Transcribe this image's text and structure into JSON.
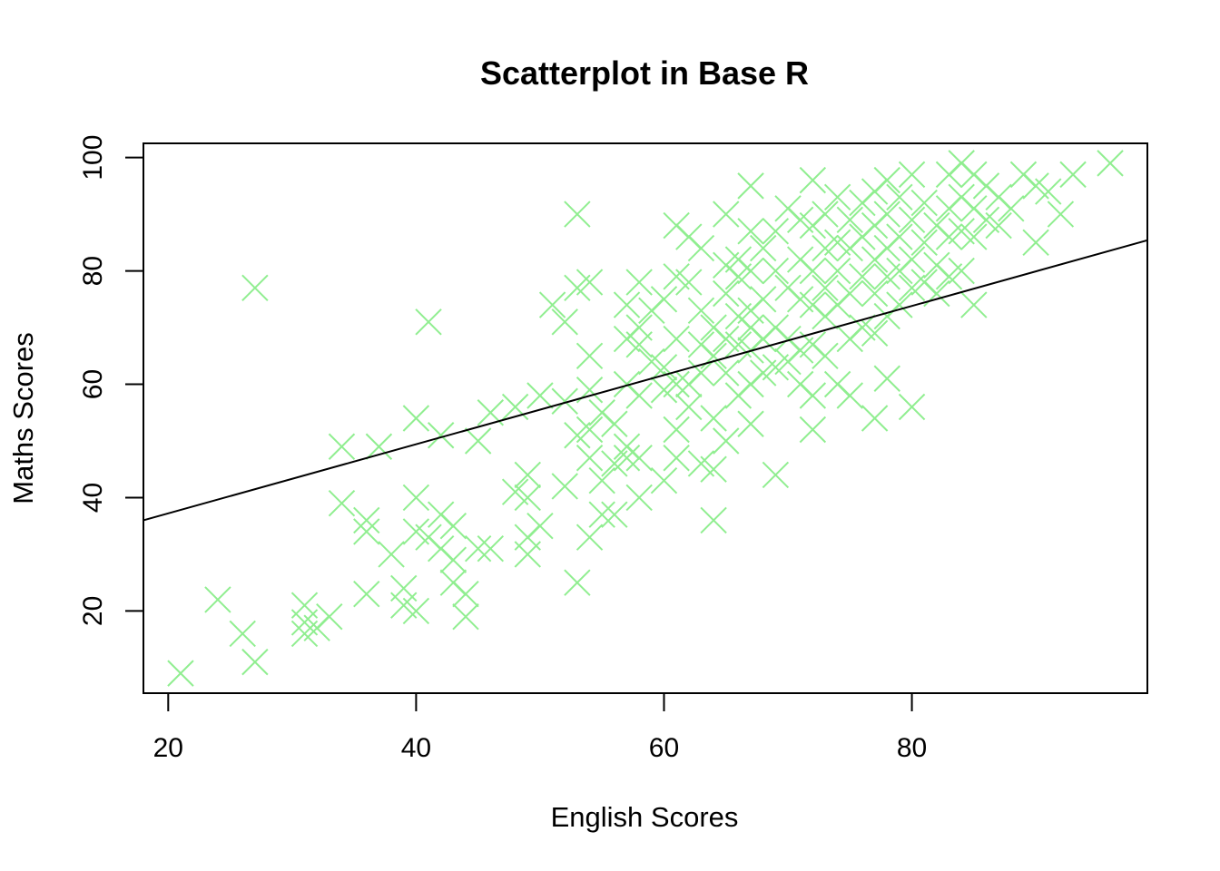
{
  "chart_data": {
    "type": "scatter",
    "title": "Scatterplot in Base R",
    "xlabel": "English Scores",
    "ylabel": "Maths Scores",
    "xlim": [
      18,
      99
    ],
    "ylim": [
      5.5,
      102.5
    ],
    "xticks": [
      20,
      40,
      60,
      80
    ],
    "yticks": [
      20,
      40,
      60,
      80,
      100
    ],
    "grid": false,
    "legend": "none",
    "marker": "x",
    "point_color": "#90EE90",
    "line_color": "#000000",
    "regression_line": {
      "x": [
        18,
        99
      ],
      "y": [
        36,
        85.4
      ]
    },
    "series": [
      {
        "points": [
          [
            21,
            9
          ],
          [
            24,
            22
          ],
          [
            26,
            16
          ],
          [
            27,
            11
          ],
          [
            27,
            77
          ],
          [
            31,
            21
          ],
          [
            31,
            18
          ],
          [
            31,
            16
          ],
          [
            32,
            17
          ],
          [
            33,
            19
          ],
          [
            34,
            49
          ],
          [
            34,
            39
          ],
          [
            36,
            36
          ],
          [
            36,
            34
          ],
          [
            36,
            23
          ],
          [
            37,
            49
          ],
          [
            38,
            30
          ],
          [
            39,
            24
          ],
          [
            39,
            21
          ],
          [
            40,
            54
          ],
          [
            40,
            40
          ],
          [
            40,
            34
          ],
          [
            40,
            20
          ],
          [
            41,
            71
          ],
          [
            41,
            33
          ],
          [
            42,
            51
          ],
          [
            42,
            37
          ],
          [
            42,
            31
          ],
          [
            43,
            35
          ],
          [
            43,
            29
          ],
          [
            43,
            25
          ],
          [
            44,
            19
          ],
          [
            44,
            23
          ],
          [
            45,
            50
          ],
          [
            45,
            31
          ],
          [
            46,
            55
          ],
          [
            46,
            31
          ],
          [
            48,
            56
          ],
          [
            48,
            41
          ],
          [
            49,
            44
          ],
          [
            49,
            40
          ],
          [
            49,
            33
          ],
          [
            49,
            30
          ],
          [
            50,
            58
          ],
          [
            50,
            35
          ],
          [
            51,
            74
          ],
          [
            52,
            71
          ],
          [
            52,
            57
          ],
          [
            52,
            42
          ],
          [
            53,
            90
          ],
          [
            53,
            77
          ],
          [
            53,
            51
          ],
          [
            53,
            25
          ],
          [
            54,
            78
          ],
          [
            54,
            65
          ],
          [
            54,
            59
          ],
          [
            54,
            52
          ],
          [
            54,
            47
          ],
          [
            54,
            33
          ],
          [
            55,
            55
          ],
          [
            55,
            43
          ],
          [
            55,
            37
          ],
          [
            56,
            53
          ],
          [
            56,
            46
          ],
          [
            56,
            37
          ],
          [
            57,
            74
          ],
          [
            57,
            68
          ],
          [
            57,
            60
          ],
          [
            57,
            49
          ],
          [
            57,
            47
          ],
          [
            58,
            78
          ],
          [
            58,
            70
          ],
          [
            58,
            67
          ],
          [
            58,
            58
          ],
          [
            58,
            47
          ],
          [
            58,
            40
          ],
          [
            59,
            73
          ],
          [
            59,
            64
          ],
          [
            60,
            75
          ],
          [
            60,
            63
          ],
          [
            60,
            59
          ],
          [
            60,
            43
          ],
          [
            61,
            88
          ],
          [
            61,
            79
          ],
          [
            61,
            68
          ],
          [
            61,
            60
          ],
          [
            61,
            52
          ],
          [
            61,
            47
          ],
          [
            62,
            86
          ],
          [
            62,
            78
          ],
          [
            62,
            60
          ],
          [
            62,
            56
          ],
          [
            63,
            84
          ],
          [
            63,
            73
          ],
          [
            63,
            67
          ],
          [
            63,
            62
          ],
          [
            63,
            46
          ],
          [
            64,
            70
          ],
          [
            64,
            65
          ],
          [
            64,
            54
          ],
          [
            64,
            45
          ],
          [
            64,
            36
          ],
          [
            65,
            90
          ],
          [
            65,
            81
          ],
          [
            65,
            76
          ],
          [
            65,
            68
          ],
          [
            65,
            62
          ],
          [
            65,
            50
          ],
          [
            66,
            82
          ],
          [
            66,
            79
          ],
          [
            66,
            72
          ],
          [
            66,
            67
          ],
          [
            66,
            58
          ],
          [
            67,
            95
          ],
          [
            67,
            87
          ],
          [
            67,
            80
          ],
          [
            67,
            73
          ],
          [
            67,
            70
          ],
          [
            67,
            66
          ],
          [
            67,
            60
          ],
          [
            67,
            53
          ],
          [
            68,
            84
          ],
          [
            68,
            75
          ],
          [
            68,
            68
          ],
          [
            68,
            62
          ],
          [
            69,
            87
          ],
          [
            69,
            80
          ],
          [
            69,
            70
          ],
          [
            69,
            63
          ],
          [
            69,
            44
          ],
          [
            70,
            91
          ],
          [
            70,
            77
          ],
          [
            70,
            68
          ],
          [
            70,
            64
          ],
          [
            71,
            89
          ],
          [
            71,
            82
          ],
          [
            71,
            75
          ],
          [
            71,
            66
          ],
          [
            71,
            60
          ],
          [
            72,
            96
          ],
          [
            72,
            88
          ],
          [
            72,
            80
          ],
          [
            72,
            74
          ],
          [
            72,
            67
          ],
          [
            72,
            58
          ],
          [
            72,
            52
          ],
          [
            73,
            90
          ],
          [
            73,
            84
          ],
          [
            73,
            77
          ],
          [
            73,
            72
          ],
          [
            73,
            65
          ],
          [
            74,
            93
          ],
          [
            74,
            85
          ],
          [
            74,
            80
          ],
          [
            74,
            74
          ],
          [
            74,
            60
          ],
          [
            75,
            89
          ],
          [
            75,
            84
          ],
          [
            75,
            76
          ],
          [
            75,
            68
          ],
          [
            75,
            58
          ],
          [
            76,
            92
          ],
          [
            76,
            86
          ],
          [
            76,
            79
          ],
          [
            76,
            70
          ],
          [
            77,
            94
          ],
          [
            77,
            88
          ],
          [
            77,
            82
          ],
          [
            77,
            76
          ],
          [
            77,
            69
          ],
          [
            77,
            54
          ],
          [
            78,
            96
          ],
          [
            78,
            90
          ],
          [
            78,
            84
          ],
          [
            78,
            79
          ],
          [
            78,
            72
          ],
          [
            78,
            61
          ],
          [
            79,
            93
          ],
          [
            79,
            86
          ],
          [
            79,
            80
          ],
          [
            79,
            74
          ],
          [
            80,
            97
          ],
          [
            80,
            89
          ],
          [
            80,
            82
          ],
          [
            80,
            77
          ],
          [
            80,
            56
          ],
          [
            81,
            92
          ],
          [
            81,
            85
          ],
          [
            81,
            78
          ],
          [
            82,
            88
          ],
          [
            82,
            81
          ],
          [
            82,
            76
          ],
          [
            83,
            97
          ],
          [
            83,
            91
          ],
          [
            83,
            86
          ],
          [
            83,
            79
          ],
          [
            84,
            99
          ],
          [
            84,
            93
          ],
          [
            84,
            87
          ],
          [
            84,
            80
          ],
          [
            85,
            97
          ],
          [
            85,
            91
          ],
          [
            85,
            86
          ],
          [
            85,
            74
          ],
          [
            86,
            95
          ],
          [
            86,
            89
          ],
          [
            87,
            93
          ],
          [
            87,
            88
          ],
          [
            88,
            91
          ],
          [
            89,
            97
          ],
          [
            90,
            85
          ],
          [
            90,
            95
          ],
          [
            91,
            94
          ],
          [
            92,
            90
          ],
          [
            93,
            97
          ],
          [
            96,
            99
          ]
        ]
      }
    ]
  }
}
